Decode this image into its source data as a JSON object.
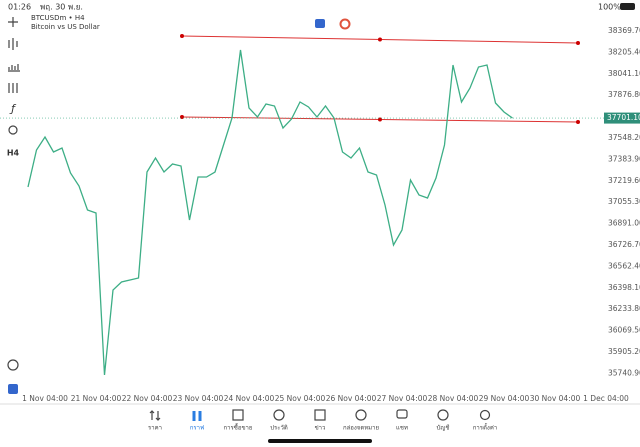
{
  "status_bar": {
    "time": "01:26",
    "date": "พฤ. 30 พ.ย.",
    "battery": "100%"
  },
  "chart_header": {
    "symbol": "BTCUSDm • H4",
    "description": "Bitcoin vs US Dollar"
  },
  "toolbar": {
    "timeframe": "H4"
  },
  "chart_data": {
    "type": "line",
    "color": "#3dae86",
    "categories": [
      null,
      null,
      "1 Nov 04:00",
      null,
      null,
      null,
      null,
      null,
      "21 Nov 04:00",
      null,
      null,
      null,
      null,
      null,
      "22 Nov 04:00",
      null,
      null,
      null,
      null,
      null,
      "23 Nov 04:00",
      null,
      null,
      null,
      null,
      null,
      "24 Nov 04:00",
      null,
      null,
      null,
      null,
      null,
      "25 Nov 04:00",
      null,
      null,
      null,
      null,
      null,
      "26 Nov 04:00",
      null,
      null,
      null,
      null,
      null,
      "27 Nov 04:00",
      null,
      null,
      null,
      null,
      null,
      "28 Nov 04:00",
      null,
      null,
      null,
      null,
      null,
      "29 Nov 04:00",
      null,
      null,
      null,
      null,
      null,
      "30 Nov 04:00",
      null,
      null,
      null,
      null,
      null,
      "1 Dec 04:00"
    ],
    "values": [
      37171.9,
      37456.0,
      37555.8,
      37440.7,
      37471.4,
      37279.4,
      37179.6,
      36995.3,
      36972.3,
      35728.5,
      36381.1,
      36442.5,
      36457.9,
      36473.2,
      37287.1,
      37394.6,
      37287.1,
      37348.5,
      37333.2,
      36918.6,
      37248.7,
      37248.7,
      37287.1,
      37494.4,
      37701.7,
      38223.8,
      37778.5,
      37709.4,
      37809.2,
      37793.8,
      37624.9,
      37694.0,
      37824.6,
      37786.2,
      37709.4,
      37793.8,
      37701.7,
      37440.7,
      37394.6,
      37471.4,
      37287.1,
      37264.1,
      37033.7,
      36726.6,
      36841.8,
      37225.7,
      37110.5,
      37087.5,
      37241.0,
      37494.4,
      38108.6,
      37824.6,
      37932.1,
      38093.3,
      38108.6,
      37816.9,
      37747.8,
      37701.1,
      null,
      null,
      null,
      null,
      null,
      null,
      null,
      null,
      null,
      null,
      null
    ],
    "ylim": [
      35651.7,
      38454.2
    ],
    "yticks": [
      {
        "value": 38369.7,
        "label": "38369.70"
      },
      {
        "value": 38205.4,
        "label": "38205.40"
      },
      {
        "value": 38041.1,
        "label": "38041.10"
      },
      {
        "value": 37876.8,
        "label": "37876.80"
      },
      {
        "value": 37548.2,
        "label": "37548.20"
      },
      {
        "value": 37383.9,
        "label": "37383.90"
      },
      {
        "value": 37219.6,
        "label": "37219.60"
      },
      {
        "value": 37055.3,
        "label": "37055.30"
      },
      {
        "value": 36891.0,
        "label": "36891.00"
      },
      {
        "value": 36726.7,
        "label": "36726.70"
      },
      {
        "value": 36562.4,
        "label": "36562.40"
      },
      {
        "value": 36398.1,
        "label": "36398.10"
      },
      {
        "value": 36233.8,
        "label": "36233.80"
      },
      {
        "value": 36069.5,
        "label": "36069.50"
      },
      {
        "value": 35905.2,
        "label": "35905.20"
      },
      {
        "value": 35740.9,
        "label": "35740.90"
      }
    ],
    "price_line": {
      "value": 37701.1,
      "label": "37701.10"
    }
  },
  "tabs": [
    "ราคา",
    "กราฟ",
    "การซื้อขาย",
    "ประวัติ",
    "ข่าว",
    "กล่องจดหมาย",
    "แชท",
    "บัญชี",
    "การตั้งค่า"
  ]
}
